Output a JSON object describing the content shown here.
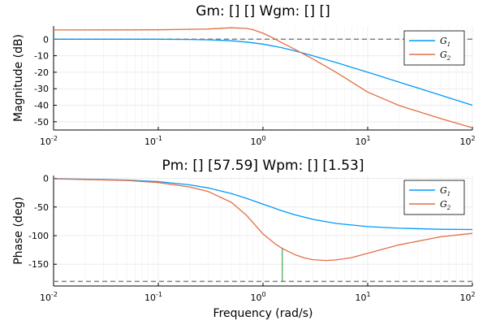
{
  "colors": {
    "G1": "#009af9",
    "G2": "#e26f46",
    "margin_marker": "#3ea44e",
    "reference": "#808080",
    "grid": "#ececec",
    "axis": "#000000"
  },
  "chart_data": [
    {
      "type": "line",
      "panel": "magnitude",
      "title": "Gm: [] []  Wgm: [] []",
      "xlabel": "",
      "ylabel": "Magnitude (dB)",
      "xscale": "log",
      "xlim": [
        0.01,
        100
      ],
      "ylim": [
        -55,
        8
      ],
      "x_ticks": [
        {
          "base": "10",
          "exp": "-2"
        },
        {
          "base": "10",
          "exp": "-1"
        },
        {
          "base": "10",
          "exp": "0"
        },
        {
          "base": "10",
          "exp": "1"
        },
        {
          "base": "10",
          "exp": "2"
        }
      ],
      "y_ticks": [
        "0",
        "-10",
        "-20",
        "-30",
        "-40",
        "-50"
      ],
      "y_tick_values": [
        0,
        -10,
        -20,
        -30,
        -40,
        -50
      ],
      "grid": true,
      "legend_position": "top-right",
      "reference_line": {
        "y": 0,
        "style": "dashed"
      },
      "series": [
        {
          "name_base": "G",
          "name_sub": "1",
          "color": "#009af9",
          "x": [
            0.01,
            0.05,
            0.1,
            0.2,
            0.3,
            0.5,
            0.7,
            1,
            1.5,
            2,
            3,
            5,
            10,
            20,
            50,
            100
          ],
          "y": [
            0,
            -0.01,
            -0.04,
            -0.17,
            -0.37,
            -0.97,
            -1.74,
            -3.0,
            -5.1,
            -7.0,
            -10.0,
            -14.15,
            -20.0,
            -26.0,
            -34.0,
            -40.0
          ]
        },
        {
          "name_base": "G",
          "name_sub": "2",
          "color": "#e26f46",
          "x": [
            0.01,
            0.1,
            0.3,
            0.5,
            0.7,
            0.8,
            1,
            1.2,
            1.5,
            2,
            3,
            5,
            10,
            20,
            50,
            100
          ],
          "y": [
            5.6,
            5.7,
            6.2,
            6.9,
            6.5,
            5.8,
            3.6,
            1.3,
            -2.0,
            -6.0,
            -12.0,
            -20.1,
            -32.0,
            -40.2,
            -48.1,
            -53.6
          ]
        }
      ]
    },
    {
      "type": "line",
      "panel": "phase",
      "title": "Pm: [] [57.59]  Wpm: [] [1.53]",
      "xlabel": "Frequency (rad/s)",
      "ylabel": "Phase (deg)",
      "xscale": "log",
      "xlim": [
        0.01,
        100
      ],
      "ylim": [
        -188,
        5
      ],
      "x_ticks": [
        {
          "base": "10",
          "exp": "-2"
        },
        {
          "base": "10",
          "exp": "-1"
        },
        {
          "base": "10",
          "exp": "0"
        },
        {
          "base": "10",
          "exp": "1"
        },
        {
          "base": "10",
          "exp": "2"
        }
      ],
      "y_ticks": [
        "0",
        "-50",
        "-100",
        "-150"
      ],
      "y_tick_values": [
        0,
        -50,
        -100,
        -150
      ],
      "grid": true,
      "legend_position": "top-right",
      "reference_line": {
        "y": -180,
        "style": "dashed"
      },
      "phase_margin_marker": {
        "x": 1.53,
        "y_from": -180,
        "y_to": -122.4
      },
      "series": [
        {
          "name_base": "G",
          "name_sub": "1",
          "color": "#009af9",
          "x": [
            0.01,
            0.05,
            0.1,
            0.2,
            0.3,
            0.5,
            0.7,
            1,
            1.5,
            2,
            3,
            5,
            10,
            20,
            50,
            100
          ],
          "y": [
            -0.6,
            -2.9,
            -5.7,
            -11.3,
            -16.7,
            -26.6,
            -35.0,
            -45.0,
            -56.3,
            -63.4,
            -71.6,
            -78.7,
            -84.3,
            -87.1,
            -88.9,
            -89.4
          ]
        },
        {
          "name_base": "G",
          "name_sub": "2",
          "color": "#e26f46",
          "x": [
            0.01,
            0.05,
            0.1,
            0.2,
            0.3,
            0.5,
            0.7,
            1,
            1.3,
            1.53,
            2,
            2.5,
            3,
            4,
            5,
            7,
            10,
            20,
            50,
            100
          ],
          "y": [
            -0.8,
            -3.6,
            -7.3,
            -15.0,
            -23.0,
            -42.0,
            -65.0,
            -97.0,
            -114.0,
            -122.4,
            -133.0,
            -139.0,
            -142.0,
            -143.5,
            -142.5,
            -138.5,
            -131.0,
            -116.0,
            -102.0,
            -96.0
          ]
        }
      ]
    }
  ]
}
